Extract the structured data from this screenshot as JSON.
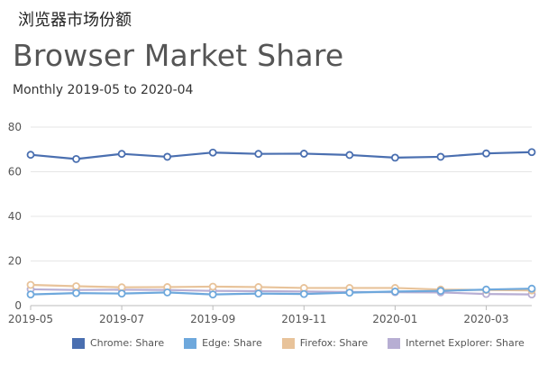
{
  "header": {
    "cn_title": "浏览器市场份额",
    "title": "Browser Market Share",
    "subtitle": "Monthly 2019-05 to 2020-04"
  },
  "chart_data": {
    "type": "line",
    "x": [
      "2019-05",
      "2019-06",
      "2019-07",
      "2019-08",
      "2019-09",
      "2019-10",
      "2019-11",
      "2019-12",
      "2020-01",
      "2020-02",
      "2020-03",
      "2020-04"
    ],
    "x_tick_labels": [
      "2019-05",
      "2019-07",
      "2019-09",
      "2019-11",
      "2020-01",
      "2020-03"
    ],
    "ylim": [
      0,
      80
    ],
    "y_ticks": [
      0,
      20,
      40,
      60,
      80
    ],
    "grid": true,
    "legend_position": "bottom",
    "series": [
      {
        "name": "Chrome: Share",
        "color": "#4a6fb0",
        "values": [
          67.6,
          65.7,
          68.0,
          66.7,
          68.6,
          68.0,
          68.1,
          67.5,
          66.3,
          66.7,
          68.2,
          68.8
        ]
      },
      {
        "name": "Edge: Share",
        "color": "#6ea8dc",
        "values": [
          5.0,
          5.6,
          5.4,
          5.9,
          5.0,
          5.4,
          5.2,
          5.8,
          6.3,
          6.6,
          7.2,
          7.6
        ]
      },
      {
        "name": "Firefox: Share",
        "color": "#e8c39a",
        "values": [
          9.3,
          8.7,
          8.2,
          8.3,
          8.5,
          8.3,
          7.9,
          7.9,
          7.9,
          7.2,
          7.0,
          6.8
        ]
      },
      {
        "name": "Internet Explorer: Share",
        "color": "#b7aed3",
        "values": [
          7.3,
          7.0,
          7.1,
          7.0,
          6.6,
          6.5,
          6.3,
          6.1,
          6.0,
          5.9,
          5.2,
          5.0
        ]
      }
    ]
  }
}
